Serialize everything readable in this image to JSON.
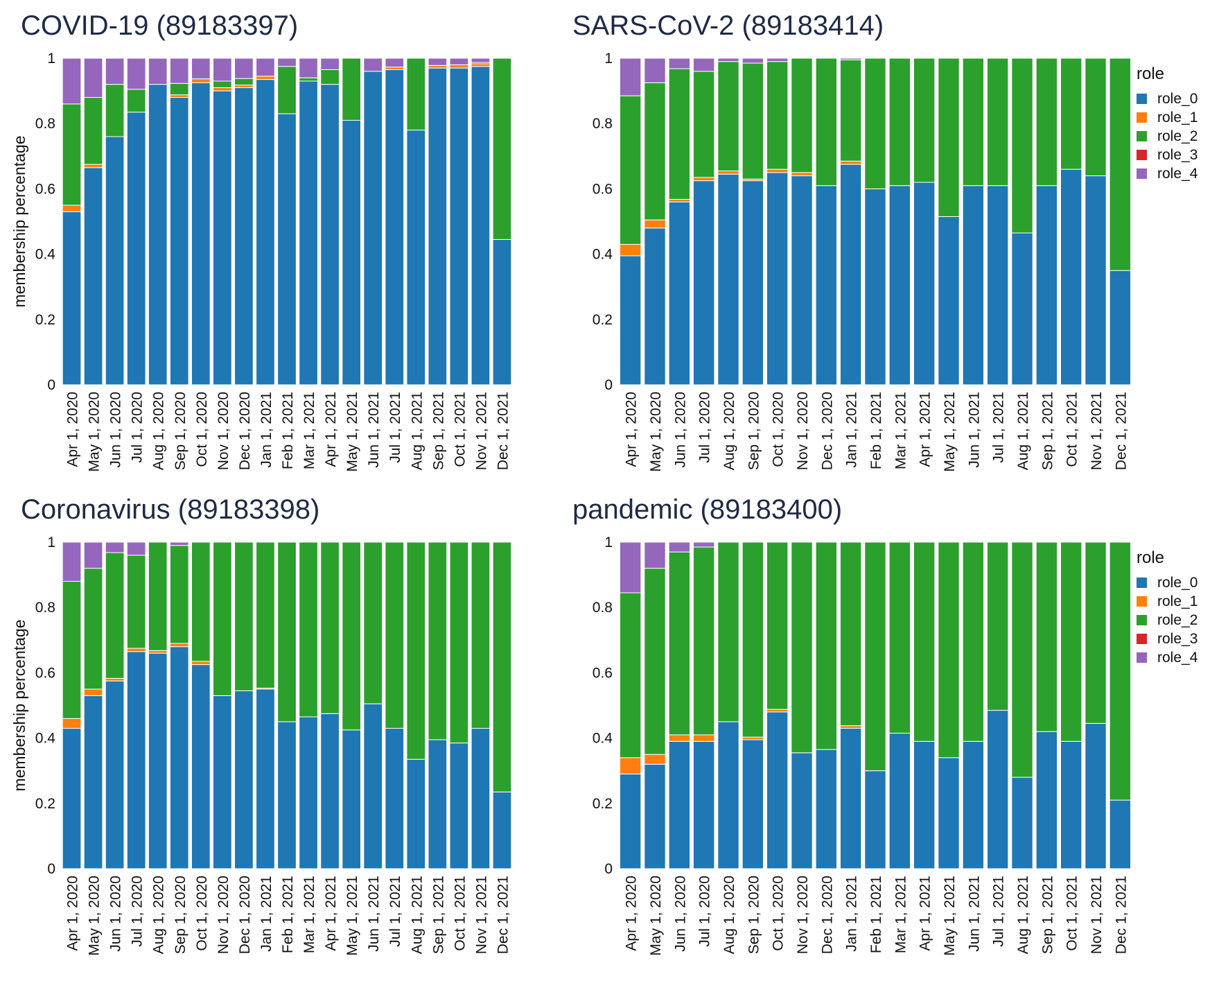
{
  "colors": {
    "role_0": "#1f77b4",
    "role_1": "#ff7f0e",
    "role_2": "#2ca02c",
    "role_3": "#d62728",
    "role_4": "#9467bd"
  },
  "chart_data": [
    {
      "type": "bar",
      "stacked": true,
      "title": "COVID-19 (89183397)",
      "ylabel": "membership percentage",
      "xlabel": "",
      "ylim": [
        0,
        1
      ],
      "yticks": [
        "0",
        "0.2",
        "0.4",
        "0.6",
        "0.8",
        "1"
      ],
      "legend": "none",
      "categories": [
        "Apr 1, 2020",
        "May 1, 2020",
        "Jun 1, 2020",
        "Jul 1, 2020",
        "Aug 1, 2020",
        "Sep 1, 2020",
        "Oct 1, 2020",
        "Nov 1, 2020",
        "Dec 1, 2020",
        "Jan 1, 2021",
        "Feb 1, 2021",
        "Mar 1, 2021",
        "Apr 1, 2021",
        "May 1, 2021",
        "Jun 1, 2021",
        "Jul 1, 2021",
        "Aug 1, 2021",
        "Sep 1, 2021",
        "Oct 1, 2021",
        "Nov 1, 2021",
        "Dec 1, 2021"
      ],
      "series": [
        {
          "name": "role_0",
          "values": [
            0.53,
            0.665,
            0.76,
            0.835,
            0.92,
            0.88,
            0.925,
            0.9,
            0.91,
            0.935,
            0.83,
            0.93,
            0.92,
            0.81,
            0.96,
            0.965,
            0.78,
            0.97,
            0.97,
            0.975,
            0.445
          ]
        },
        {
          "name": "role_1",
          "values": [
            0.02,
            0.01,
            0.0,
            0.0,
            0.0,
            0.008,
            0.012,
            0.01,
            0.008,
            0.01,
            0.0,
            0.0,
            0.0,
            0.0,
            0.0,
            0.008,
            0.0,
            0.008,
            0.01,
            0.008,
            0.0
          ]
        },
        {
          "name": "role_2",
          "values": [
            0.31,
            0.205,
            0.16,
            0.07,
            0.0,
            0.035,
            0.0,
            0.02,
            0.02,
            0.0,
            0.145,
            0.01,
            0.045,
            0.19,
            0.0,
            0.0,
            0.22,
            0.0,
            0.0,
            0.0,
            0.555
          ]
        },
        {
          "name": "role_3",
          "values": [
            0,
            0,
            0,
            0,
            0,
            0,
            0,
            0,
            0,
            0,
            0,
            0,
            0,
            0,
            0,
            0,
            0,
            0,
            0,
            0.004,
            0
          ]
        },
        {
          "name": "role_4",
          "values": [
            0.14,
            0.12,
            0.08,
            0.095,
            0.08,
            0.077,
            0.063,
            0.07,
            0.062,
            0.055,
            0.025,
            0.06,
            0.035,
            0.0,
            0.04,
            0.027,
            0.0,
            0.022,
            0.02,
            0.013,
            0.0
          ]
        }
      ]
    },
    {
      "type": "bar",
      "stacked": true,
      "title": "SARS-CoV-2 (89183414)",
      "ylabel": "",
      "xlabel": "",
      "ylim": [
        0,
        1
      ],
      "yticks": [
        "0",
        "0.2",
        "0.4",
        "0.6",
        "0.8",
        "1"
      ],
      "legend": "right",
      "legend_title": "role",
      "categories": [
        "Apr 1, 2020",
        "May 1, 2020",
        "Jun 1, 2020",
        "Jul 1, 2020",
        "Aug 1, 2020",
        "Sep 1, 2020",
        "Oct 1, 2020",
        "Nov 1, 2020",
        "Dec 1, 2020",
        "Jan 1, 2021",
        "Feb 1, 2021",
        "Mar 1, 2021",
        "Apr 1, 2021",
        "May 1, 2021",
        "Jun 1, 2021",
        "Jul 1, 2021",
        "Aug 1, 2021",
        "Sep 1, 2021",
        "Oct 1, 2021",
        "Nov 1, 2021",
        "Dec 1, 2021"
      ],
      "series": [
        {
          "name": "role_0",
          "values": [
            0.395,
            0.48,
            0.56,
            0.625,
            0.645,
            0.625,
            0.65,
            0.64,
            0.61,
            0.675,
            0.6,
            0.61,
            0.62,
            0.515,
            0.61,
            0.61,
            0.465,
            0.61,
            0.66,
            0.64,
            0.35
          ]
        },
        {
          "name": "role_1",
          "values": [
            0.035,
            0.025,
            0.008,
            0.01,
            0.01,
            0.005,
            0.01,
            0.01,
            0.0,
            0.01,
            0.0,
            0.0,
            0.0,
            0.0,
            0.0,
            0.0,
            0.0,
            0.0,
            0.0,
            0.0,
            0.0
          ]
        },
        {
          "name": "role_2",
          "values": [
            0.455,
            0.42,
            0.4,
            0.325,
            0.335,
            0.355,
            0.33,
            0.35,
            0.39,
            0.31,
            0.4,
            0.39,
            0.38,
            0.485,
            0.39,
            0.39,
            0.535,
            0.39,
            0.34,
            0.36,
            0.65
          ]
        },
        {
          "name": "role_3",
          "values": [
            0,
            0,
            0,
            0,
            0,
            0,
            0,
            0,
            0,
            0,
            0,
            0,
            0,
            0,
            0,
            0,
            0,
            0,
            0,
            0,
            0
          ]
        },
        {
          "name": "role_4",
          "values": [
            0.115,
            0.075,
            0.032,
            0.04,
            0.01,
            0.015,
            0.01,
            0.0,
            0.0,
            0.005,
            0.0,
            0.0,
            0.0,
            0.0,
            0.0,
            0.0,
            0.0,
            0.0,
            0.0,
            0.0,
            0.0
          ]
        }
      ]
    },
    {
      "type": "bar",
      "stacked": true,
      "title": "Coronavirus (89183398)",
      "ylabel": "membership percentage",
      "xlabel": "",
      "ylim": [
        0,
        1
      ],
      "yticks": [
        "0",
        "0.2",
        "0.4",
        "0.6",
        "0.8",
        "1"
      ],
      "legend": "none",
      "categories": [
        "Apr 1, 2020",
        "May 1, 2020",
        "Jun 1, 2020",
        "Jul 1, 2020",
        "Aug 1, 2020",
        "Sep 1, 2020",
        "Oct 1, 2020",
        "Nov 1, 2020",
        "Dec 1, 2020",
        "Jan 1, 2021",
        "Feb 1, 2021",
        "Mar 1, 2021",
        "Apr 1, 2021",
        "May 1, 2021",
        "Jun 1, 2021",
        "Jul 1, 2021",
        "Aug 1, 2021",
        "Sep 1, 2021",
        "Oct 1, 2021",
        "Nov 1, 2021",
        "Dec 1, 2021"
      ],
      "series": [
        {
          "name": "role_0",
          "values": [
            0.43,
            0.53,
            0.575,
            0.665,
            0.66,
            0.68,
            0.625,
            0.53,
            0.545,
            0.55,
            0.45,
            0.465,
            0.475,
            0.425,
            0.505,
            0.43,
            0.335,
            0.395,
            0.385,
            0.43,
            0.235
          ]
        },
        {
          "name": "role_1",
          "values": [
            0.03,
            0.02,
            0.008,
            0.01,
            0.008,
            0.01,
            0.01,
            0.0,
            0.0,
            0.003,
            0.0,
            0.0,
            0.0,
            0.0,
            0.0,
            0.0,
            0.0,
            0.0,
            0.0,
            0.0,
            0.0
          ]
        },
        {
          "name": "role_2",
          "values": [
            0.42,
            0.37,
            0.385,
            0.285,
            0.332,
            0.3,
            0.365,
            0.47,
            0.455,
            0.447,
            0.55,
            0.535,
            0.525,
            0.575,
            0.495,
            0.57,
            0.665,
            0.605,
            0.615,
            0.57,
            0.765
          ]
        },
        {
          "name": "role_3",
          "values": [
            0,
            0,
            0,
            0,
            0,
            0,
            0,
            0,
            0,
            0,
            0,
            0,
            0,
            0,
            0,
            0,
            0,
            0,
            0,
            0,
            0
          ]
        },
        {
          "name": "role_4",
          "values": [
            0.12,
            0.08,
            0.032,
            0.04,
            0.0,
            0.01,
            0.0,
            0.0,
            0.0,
            0.0,
            0.0,
            0.0,
            0.0,
            0.0,
            0.0,
            0.0,
            0.0,
            0.0,
            0.0,
            0.0,
            0.0
          ]
        }
      ]
    },
    {
      "type": "bar",
      "stacked": true,
      "title": "pandemic (89183400)",
      "ylabel": "",
      "xlabel": "",
      "ylim": [
        0,
        1
      ],
      "yticks": [
        "0",
        "0.2",
        "0.4",
        "0.6",
        "0.8",
        "1"
      ],
      "legend": "right",
      "legend_title": "role",
      "categories": [
        "Apr 1, 2020",
        "May 1, 2020",
        "Jun 1, 2020",
        "Jul 1, 2020",
        "Aug 1, 2020",
        "Sep 1, 2020",
        "Oct 1, 2020",
        "Nov 1, 2020",
        "Dec 1, 2020",
        "Jan 1, 2021",
        "Feb 1, 2021",
        "Mar 1, 2021",
        "Apr 1, 2021",
        "May 1, 2021",
        "Jun 1, 2021",
        "Jul 1, 2021",
        "Aug 1, 2021",
        "Sep 1, 2021",
        "Oct 1, 2021",
        "Nov 1, 2021",
        "Dec 1, 2021"
      ],
      "series": [
        {
          "name": "role_0",
          "values": [
            0.29,
            0.32,
            0.39,
            0.39,
            0.45,
            0.395,
            0.48,
            0.355,
            0.365,
            0.43,
            0.3,
            0.415,
            0.39,
            0.34,
            0.39,
            0.485,
            0.28,
            0.42,
            0.39,
            0.445,
            0.21
          ]
        },
        {
          "name": "role_1",
          "values": [
            0.05,
            0.03,
            0.02,
            0.02,
            0.0,
            0.008,
            0.008,
            0.0,
            0.0,
            0.008,
            0.0,
            0.0,
            0.0,
            0.0,
            0.0,
            0.0,
            0.0,
            0.0,
            0.0,
            0.0,
            0.0
          ]
        },
        {
          "name": "role_2",
          "values": [
            0.505,
            0.57,
            0.56,
            0.575,
            0.55,
            0.597,
            0.512,
            0.645,
            0.635,
            0.562,
            0.7,
            0.585,
            0.61,
            0.66,
            0.61,
            0.515,
            0.72,
            0.58,
            0.61,
            0.555,
            0.79
          ]
        },
        {
          "name": "role_3",
          "values": [
            0,
            0,
            0,
            0,
            0,
            0,
            0,
            0,
            0,
            0,
            0,
            0,
            0,
            0,
            0,
            0,
            0,
            0,
            0,
            0,
            0
          ]
        },
        {
          "name": "role_4",
          "values": [
            0.155,
            0.08,
            0.03,
            0.015,
            0.0,
            0.0,
            0.0,
            0.0,
            0.0,
            0.0,
            0.0,
            0.0,
            0.0,
            0.0,
            0.0,
            0.0,
            0.0,
            0.0,
            0.0,
            0.0,
            0.0
          ]
        }
      ]
    }
  ]
}
